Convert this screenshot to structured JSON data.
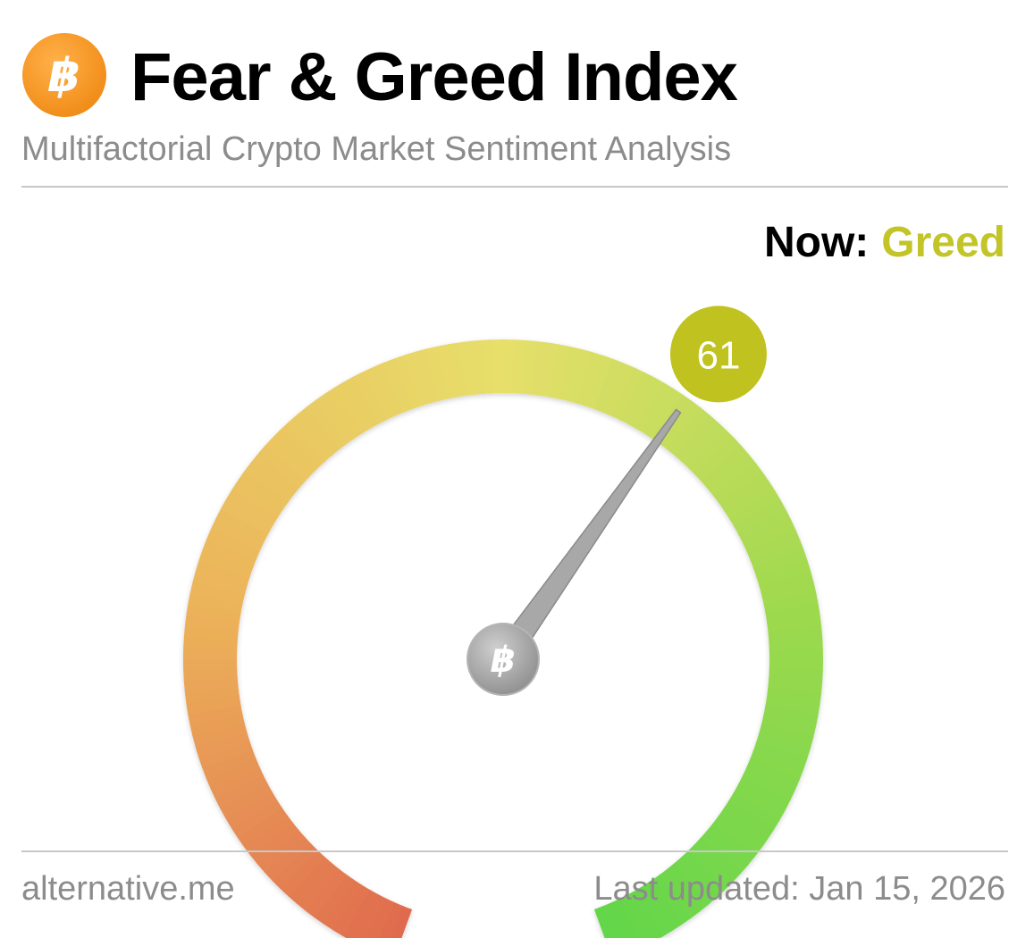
{
  "header": {
    "title": "Fear & Greed Index",
    "subtitle": "Multifactorial Crypto Market Sentiment Analysis",
    "logo_icon": "bitcoin-icon",
    "logo_glyph": "฿",
    "logo_color": "#f7931a"
  },
  "status": {
    "now_label": "Now:",
    "classification": "Greed",
    "classification_color": "#c2c428"
  },
  "gauge": {
    "value": 61,
    "value_text": "61",
    "min": 0,
    "max": 100,
    "badge_color": "#bfc21f",
    "center_icon": "bitcoin-icon",
    "center_glyph": "฿",
    "gradient_colors": [
      "#e06a4e",
      "#ecb35a",
      "#e7df6a",
      "#9ed94e",
      "#62d64a"
    ]
  },
  "footer": {
    "source": "alternative.me",
    "last_updated": "Last updated: Jan 15, 2026"
  }
}
